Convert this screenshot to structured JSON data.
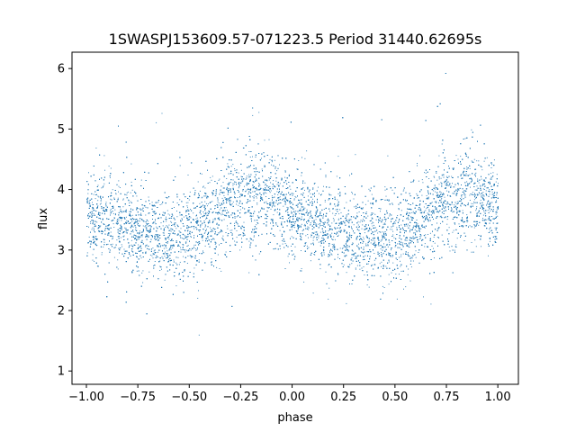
{
  "chart_data": {
    "type": "scatter",
    "title": "1SWASPJ153609.57-071223.5 Period 31440.62695s",
    "xlabel": "phase",
    "ylabel": "flux",
    "xlim": [
      -1.07,
      1.1
    ],
    "ylim": [
      0.78,
      6.27
    ],
    "xticks": [
      -1.0,
      -0.75,
      -0.5,
      -0.25,
      0.0,
      0.25,
      0.5,
      0.75,
      1.0
    ],
    "xtick_labels": [
      "−1.00",
      "−0.75",
      "−0.50",
      "−0.25",
      "0.00",
      "0.25",
      "0.50",
      "0.75",
      "1.00"
    ],
    "yticks": [
      1,
      2,
      3,
      4,
      5,
      6
    ],
    "ytick_labels": [
      "1",
      "2",
      "3",
      "4",
      "5",
      "6"
    ],
    "grid": false,
    "legend": "none",
    "marker_color": "#1f77b4",
    "series": [
      {
        "x": [
          -1.0,
          -0.9,
          -0.8,
          -0.7,
          -0.6,
          -0.5,
          -0.4,
          -0.3,
          -0.2,
          -0.1,
          0.0,
          0.1,
          0.2,
          0.3,
          0.4,
          0.5,
          0.6,
          0.7,
          0.8,
          0.9,
          1.0
        ],
        "y": [
          3.6,
          3.5,
          3.4,
          3.3,
          3.25,
          3.3,
          3.5,
          3.8,
          3.9,
          3.85,
          3.65,
          3.45,
          3.35,
          3.25,
          3.2,
          3.25,
          3.45,
          3.75,
          3.9,
          3.85,
          3.65
        ],
        "spread": [
          0.35,
          0.35,
          0.35,
          0.35,
          0.35,
          0.35,
          0.38,
          0.4,
          0.4,
          0.38,
          0.36,
          0.35,
          0.35,
          0.35,
          0.35,
          0.35,
          0.38,
          0.4,
          0.4,
          0.38,
          0.36
        ]
      }
    ]
  }
}
